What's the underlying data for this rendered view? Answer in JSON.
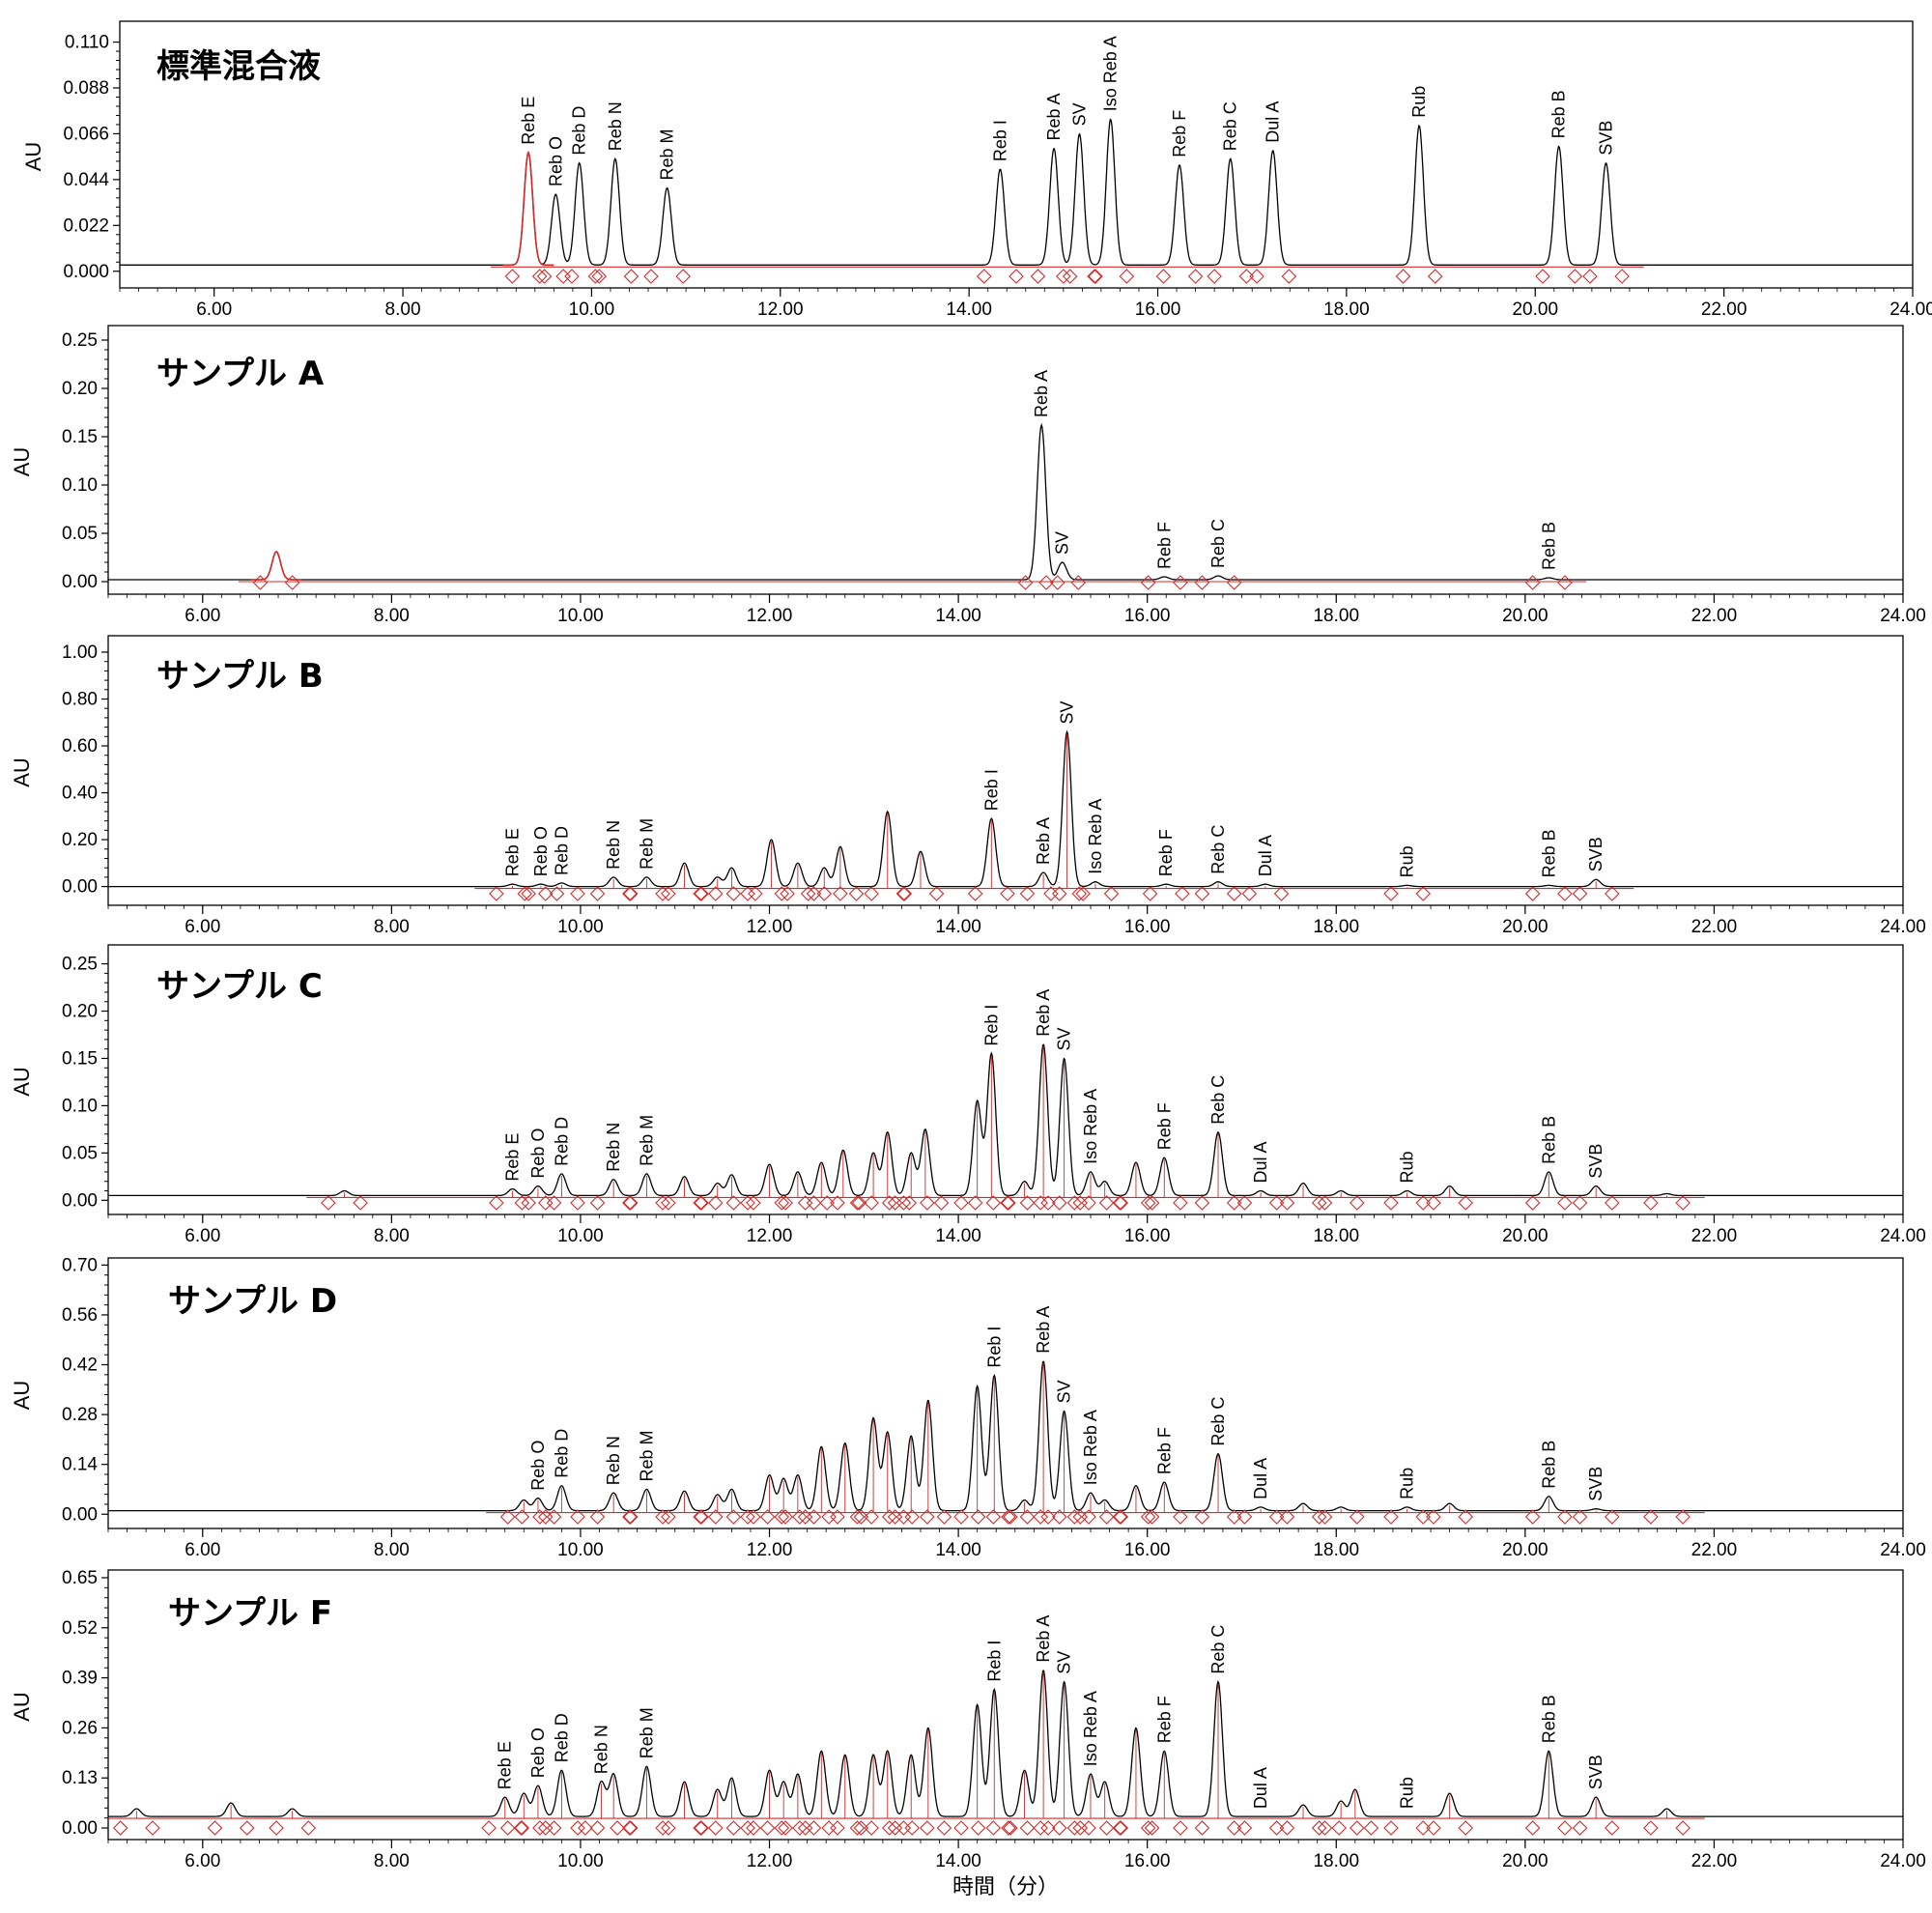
{
  "chart_data": [
    {
      "type": "line",
      "title": "標準混合液",
      "ylabel": "AU",
      "xlim": [
        5.0,
        24.0
      ],
      "ylim": [
        -0.008,
        0.12
      ],
      "yticks": [
        "0.000",
        "0.022",
        "0.044",
        "0.066",
        "0.088",
        "0.110"
      ],
      "xticks": [
        "6.00",
        "8.00",
        "10.00",
        "12.00",
        "14.00",
        "16.00",
        "18.00",
        "20.00",
        "22.00",
        "24.00"
      ],
      "baseline": 0.003,
      "peaks": [
        {
          "x": 9.33,
          "y": 0.057,
          "label": "Reb E",
          "red": true
        },
        {
          "x": 9.62,
          "y": 0.037,
          "label": "Reb O"
        },
        {
          "x": 9.87,
          "y": 0.052,
          "label": "Reb D"
        },
        {
          "x": 10.25,
          "y": 0.054,
          "label": "Reb N"
        },
        {
          "x": 10.8,
          "y": 0.04,
          "label": "Reb M"
        },
        {
          "x": 14.33,
          "y": 0.049,
          "label": "Reb I"
        },
        {
          "x": 14.9,
          "y": 0.059,
          "label": "Reb A"
        },
        {
          "x": 15.17,
          "y": 0.066,
          "label": "SV"
        },
        {
          "x": 15.5,
          "y": 0.073,
          "label": "Iso Reb A"
        },
        {
          "x": 16.23,
          "y": 0.051,
          "label": "Reb F"
        },
        {
          "x": 16.77,
          "y": 0.054,
          "label": "Reb C"
        },
        {
          "x": 17.22,
          "y": 0.058,
          "label": "Dul A"
        },
        {
          "x": 18.77,
          "y": 0.07,
          "label": "Rub"
        },
        {
          "x": 20.25,
          "y": 0.06,
          "label": "Reb B"
        },
        {
          "x": 20.75,
          "y": 0.052,
          "label": "SVB"
        }
      ]
    },
    {
      "type": "line",
      "title": "サンプル A",
      "ylabel": "AU",
      "xlim": [
        5.0,
        24.0
      ],
      "ylim": [
        -0.013,
        0.265
      ],
      "yticks": [
        "0.00",
        "0.05",
        "0.10",
        "0.15",
        "0.20",
        "0.25"
      ],
      "xticks": [
        "6.00",
        "8.00",
        "10.00",
        "12.00",
        "14.00",
        "16.00",
        "18.00",
        "20.00",
        "22.00",
        "24.00"
      ],
      "baseline": 0.002,
      "peaks": [
        {
          "x": 6.78,
          "y": 0.031,
          "label": "",
          "red": true
        },
        {
          "x": 14.88,
          "y": 0.162,
          "label": "Reb A"
        },
        {
          "x": 15.1,
          "y": 0.02,
          "label": "SV"
        },
        {
          "x": 16.18,
          "y": 0.005,
          "label": "Reb F"
        },
        {
          "x": 16.75,
          "y": 0.006,
          "label": "Reb C"
        },
        {
          "x": 20.25,
          "y": 0.004,
          "label": "Reb B"
        }
      ]
    },
    {
      "type": "line",
      "title": "サンプル B",
      "ylabel": "AU",
      "xlim": [
        5.0,
        24.0
      ],
      "ylim": [
        -0.08,
        1.07
      ],
      "yticks": [
        "0.00",
        "0.20",
        "0.40",
        "0.60",
        "0.80",
        "1.00"
      ],
      "xticks": [
        "6.00",
        "8.00",
        "10.00",
        "12.00",
        "14.00",
        "16.00",
        "18.00",
        "20.00",
        "22.00",
        "24.00"
      ],
      "baseline": 0.0,
      "peaks": [
        {
          "x": 9.28,
          "y": 0.01,
          "label": "Reb E"
        },
        {
          "x": 9.58,
          "y": 0.01,
          "label": "Reb O"
        },
        {
          "x": 9.8,
          "y": 0.015,
          "label": "Reb D"
        },
        {
          "x": 10.35,
          "y": 0.04,
          "label": "Reb N"
        },
        {
          "x": 10.7,
          "y": 0.04,
          "label": "Reb M"
        },
        {
          "x": 11.1,
          "y": 0.1,
          "label": ""
        },
        {
          "x": 11.45,
          "y": 0.04,
          "label": ""
        },
        {
          "x": 11.6,
          "y": 0.08,
          "label": ""
        },
        {
          "x": 12.02,
          "y": 0.2,
          "label": ""
        },
        {
          "x": 12.3,
          "y": 0.1,
          "label": ""
        },
        {
          "x": 12.58,
          "y": 0.08,
          "label": ""
        },
        {
          "x": 12.75,
          "y": 0.17,
          "label": ""
        },
        {
          "x": 13.25,
          "y": 0.32,
          "label": ""
        },
        {
          "x": 13.6,
          "y": 0.15,
          "label": ""
        },
        {
          "x": 14.35,
          "y": 0.29,
          "label": "Reb I"
        },
        {
          "x": 14.9,
          "y": 0.06,
          "label": "Reb A"
        },
        {
          "x": 15.15,
          "y": 0.66,
          "label": "SV"
        },
        {
          "x": 15.45,
          "y": 0.02,
          "label": "Iso Reb A"
        },
        {
          "x": 16.2,
          "y": 0.01,
          "label": "Reb F"
        },
        {
          "x": 16.75,
          "y": 0.02,
          "label": "Reb C"
        },
        {
          "x": 17.25,
          "y": 0.01,
          "label": "Dul A"
        },
        {
          "x": 18.75,
          "y": 0.005,
          "label": "Rub"
        },
        {
          "x": 20.25,
          "y": 0.005,
          "label": "Reb B"
        },
        {
          "x": 20.75,
          "y": 0.03,
          "label": "SVB"
        }
      ]
    },
    {
      "type": "line",
      "title": "サンプル C",
      "ylabel": "AU",
      "xlim": [
        5.0,
        24.0
      ],
      "ylim": [
        -0.015,
        0.27
      ],
      "yticks": [
        "0.00",
        "0.05",
        "0.10",
        "0.15",
        "0.20",
        "0.25"
      ],
      "xticks": [
        "6.00",
        "8.00",
        "10.00",
        "12.00",
        "14.00",
        "16.00",
        "18.00",
        "20.00",
        "22.00",
        "24.00"
      ],
      "baseline": 0.005,
      "peaks": [
        {
          "x": 7.5,
          "y": 0.01,
          "label": ""
        },
        {
          "x": 9.28,
          "y": 0.012,
          "label": "Reb E"
        },
        {
          "x": 9.55,
          "y": 0.015,
          "label": "Reb O"
        },
        {
          "x": 9.8,
          "y": 0.028,
          "label": "Reb D"
        },
        {
          "x": 10.35,
          "y": 0.022,
          "label": "Reb N"
        },
        {
          "x": 10.7,
          "y": 0.028,
          "label": "Reb M"
        },
        {
          "x": 11.1,
          "y": 0.025,
          "label": ""
        },
        {
          "x": 11.45,
          "y": 0.018,
          "label": ""
        },
        {
          "x": 11.6,
          "y": 0.027,
          "label": ""
        },
        {
          "x": 12.0,
          "y": 0.038,
          "label": ""
        },
        {
          "x": 12.3,
          "y": 0.03,
          "label": ""
        },
        {
          "x": 12.55,
          "y": 0.04,
          "label": ""
        },
        {
          "x": 12.78,
          "y": 0.053,
          "label": ""
        },
        {
          "x": 13.1,
          "y": 0.05,
          "label": ""
        },
        {
          "x": 13.25,
          "y": 0.072,
          "label": ""
        },
        {
          "x": 13.5,
          "y": 0.05,
          "label": ""
        },
        {
          "x": 13.65,
          "y": 0.075,
          "label": ""
        },
        {
          "x": 14.2,
          "y": 0.105,
          "label": ""
        },
        {
          "x": 14.35,
          "y": 0.155,
          "label": "Reb I"
        },
        {
          "x": 14.7,
          "y": 0.02,
          "label": ""
        },
        {
          "x": 14.9,
          "y": 0.165,
          "label": "Reb A"
        },
        {
          "x": 15.12,
          "y": 0.15,
          "label": "SV"
        },
        {
          "x": 15.4,
          "y": 0.03,
          "label": "Iso Reb A"
        },
        {
          "x": 15.55,
          "y": 0.02,
          "label": ""
        },
        {
          "x": 15.88,
          "y": 0.04,
          "label": ""
        },
        {
          "x": 16.18,
          "y": 0.045,
          "label": "Reb F"
        },
        {
          "x": 16.75,
          "y": 0.072,
          "label": "Reb C"
        },
        {
          "x": 17.2,
          "y": 0.01,
          "label": "Dul A"
        },
        {
          "x": 17.65,
          "y": 0.018,
          "label": ""
        },
        {
          "x": 18.05,
          "y": 0.01,
          "label": ""
        },
        {
          "x": 18.75,
          "y": 0.01,
          "label": "Rub"
        },
        {
          "x": 19.2,
          "y": 0.015,
          "label": ""
        },
        {
          "x": 20.25,
          "y": 0.03,
          "label": "Reb B"
        },
        {
          "x": 20.75,
          "y": 0.015,
          "label": "SVB"
        },
        {
          "x": 21.5,
          "y": 0.007,
          "label": ""
        }
      ]
    },
    {
      "type": "line",
      "title": "サンプル D",
      "ylabel": "AU",
      "xlim": [
        5.0,
        24.0
      ],
      "ylim": [
        -0.04,
        0.72
      ],
      "yticks": [
        "0.00",
        "0.14",
        "0.28",
        "0.42",
        "0.56",
        "0.70"
      ],
      "xticks": [
        "6.00",
        "8.00",
        "10.00",
        "12.00",
        "14.00",
        "16.00",
        "18.00",
        "20.00",
        "22.00",
        "24.00"
      ],
      "baseline": 0.01,
      "peaks": [
        {
          "x": 9.4,
          "y": 0.04,
          "label": ""
        },
        {
          "x": 9.55,
          "y": 0.045,
          "label": "Reb O"
        },
        {
          "x": 9.8,
          "y": 0.08,
          "label": "Reb D"
        },
        {
          "x": 10.35,
          "y": 0.06,
          "label": "Reb N"
        },
        {
          "x": 10.7,
          "y": 0.07,
          "label": "Reb M"
        },
        {
          "x": 11.1,
          "y": 0.065,
          "label": ""
        },
        {
          "x": 11.45,
          "y": 0.055,
          "label": ""
        },
        {
          "x": 11.6,
          "y": 0.07,
          "label": ""
        },
        {
          "x": 12.0,
          "y": 0.11,
          "label": ""
        },
        {
          "x": 12.15,
          "y": 0.1,
          "label": ""
        },
        {
          "x": 12.3,
          "y": 0.11,
          "label": ""
        },
        {
          "x": 12.55,
          "y": 0.19,
          "label": ""
        },
        {
          "x": 12.8,
          "y": 0.2,
          "label": ""
        },
        {
          "x": 13.1,
          "y": 0.27,
          "label": ""
        },
        {
          "x": 13.25,
          "y": 0.23,
          "label": ""
        },
        {
          "x": 13.5,
          "y": 0.22,
          "label": ""
        },
        {
          "x": 13.68,
          "y": 0.32,
          "label": ""
        },
        {
          "x": 14.2,
          "y": 0.36,
          "label": ""
        },
        {
          "x": 14.38,
          "y": 0.39,
          "label": "Reb I"
        },
        {
          "x": 14.7,
          "y": 0.04,
          "label": ""
        },
        {
          "x": 14.9,
          "y": 0.43,
          "label": "Reb A"
        },
        {
          "x": 15.12,
          "y": 0.29,
          "label": "SV"
        },
        {
          "x": 15.4,
          "y": 0.06,
          "label": "Iso Reb A"
        },
        {
          "x": 15.55,
          "y": 0.04,
          "label": ""
        },
        {
          "x": 15.88,
          "y": 0.08,
          "label": ""
        },
        {
          "x": 16.18,
          "y": 0.09,
          "label": "Reb F"
        },
        {
          "x": 16.75,
          "y": 0.17,
          "label": "Reb C"
        },
        {
          "x": 17.2,
          "y": 0.02,
          "label": "Dul A"
        },
        {
          "x": 17.65,
          "y": 0.03,
          "label": ""
        },
        {
          "x": 18.05,
          "y": 0.02,
          "label": ""
        },
        {
          "x": 18.75,
          "y": 0.02,
          "label": "Rub"
        },
        {
          "x": 19.2,
          "y": 0.03,
          "label": ""
        },
        {
          "x": 20.25,
          "y": 0.05,
          "label": "Reb B"
        },
        {
          "x": 20.75,
          "y": 0.015,
          "label": "SVB"
        },
        {
          "x": 21.5,
          "y": 0.01,
          "label": ""
        }
      ]
    },
    {
      "type": "line",
      "title": "サンプル F",
      "ylabel": "AU",
      "xlim": [
        5.0,
        24.0
      ],
      "ylim": [
        -0.03,
        0.67
      ],
      "yticks": [
        "0.00",
        "0.13",
        "0.26",
        "0.39",
        "0.52",
        "0.65"
      ],
      "xticks": [
        "6.00",
        "8.00",
        "10.00",
        "12.00",
        "14.00",
        "16.00",
        "18.00",
        "20.00",
        "22.00",
        "24.00"
      ],
      "xlabel": "時間（分）",
      "baseline": 0.03,
      "peaks": [
        {
          "x": 5.3,
          "y": 0.05,
          "label": ""
        },
        {
          "x": 6.3,
          "y": 0.065,
          "label": ""
        },
        {
          "x": 6.95,
          "y": 0.05,
          "label": ""
        },
        {
          "x": 9.2,
          "y": 0.08,
          "label": "Reb E"
        },
        {
          "x": 9.4,
          "y": 0.09,
          "label": ""
        },
        {
          "x": 9.55,
          "y": 0.11,
          "label": "Reb O"
        },
        {
          "x": 9.8,
          "y": 0.15,
          "label": "Reb D"
        },
        {
          "x": 10.22,
          "y": 0.12,
          "label": "Reb N"
        },
        {
          "x": 10.35,
          "y": 0.14,
          "label": ""
        },
        {
          "x": 10.7,
          "y": 0.16,
          "label": "Reb M"
        },
        {
          "x": 11.1,
          "y": 0.12,
          "label": ""
        },
        {
          "x": 11.45,
          "y": 0.1,
          "label": ""
        },
        {
          "x": 11.6,
          "y": 0.13,
          "label": ""
        },
        {
          "x": 12.0,
          "y": 0.15,
          "label": ""
        },
        {
          "x": 12.15,
          "y": 0.12,
          "label": ""
        },
        {
          "x": 12.3,
          "y": 0.14,
          "label": ""
        },
        {
          "x": 12.55,
          "y": 0.2,
          "label": ""
        },
        {
          "x": 12.8,
          "y": 0.19,
          "label": ""
        },
        {
          "x": 13.1,
          "y": 0.19,
          "label": ""
        },
        {
          "x": 13.25,
          "y": 0.2,
          "label": ""
        },
        {
          "x": 13.5,
          "y": 0.19,
          "label": ""
        },
        {
          "x": 13.68,
          "y": 0.26,
          "label": ""
        },
        {
          "x": 14.2,
          "y": 0.32,
          "label": ""
        },
        {
          "x": 14.38,
          "y": 0.36,
          "label": "Reb I"
        },
        {
          "x": 14.7,
          "y": 0.15,
          "label": ""
        },
        {
          "x": 14.9,
          "y": 0.41,
          "label": "Reb A"
        },
        {
          "x": 15.12,
          "y": 0.38,
          "label": "SV"
        },
        {
          "x": 15.4,
          "y": 0.14,
          "label": "Iso Reb A"
        },
        {
          "x": 15.55,
          "y": 0.12,
          "label": ""
        },
        {
          "x": 15.88,
          "y": 0.26,
          "label": ""
        },
        {
          "x": 16.18,
          "y": 0.2,
          "label": "Reb F"
        },
        {
          "x": 16.75,
          "y": 0.38,
          "label": "Reb C"
        },
        {
          "x": 17.2,
          "y": 0.03,
          "label": "Dul A"
        },
        {
          "x": 17.65,
          "y": 0.06,
          "label": ""
        },
        {
          "x": 18.05,
          "y": 0.07,
          "label": ""
        },
        {
          "x": 18.2,
          "y": 0.1,
          "label": ""
        },
        {
          "x": 18.75,
          "y": 0.03,
          "label": "Rub"
        },
        {
          "x": 19.2,
          "y": 0.09,
          "label": ""
        },
        {
          "x": 20.25,
          "y": 0.2,
          "label": "Reb B"
        },
        {
          "x": 20.75,
          "y": 0.08,
          "label": "SVB"
        },
        {
          "x": 21.5,
          "y": 0.05,
          "label": ""
        }
      ]
    }
  ]
}
